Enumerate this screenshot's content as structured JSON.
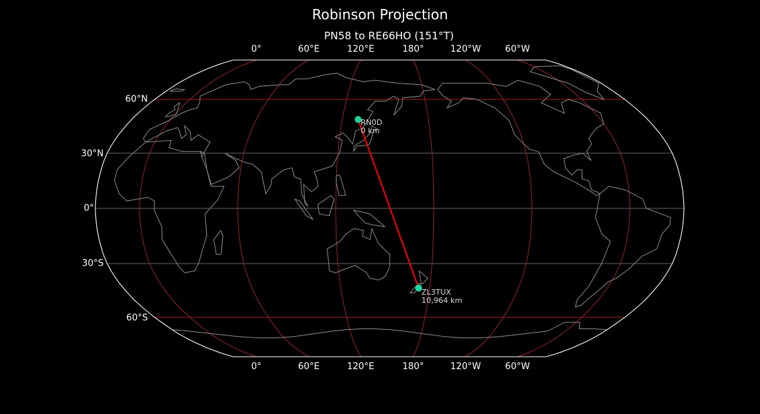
{
  "title": "Robinson Projection",
  "subtitle": "PN58 to RE66HO (151°T)",
  "lon_ticks_top": [
    "0°",
    "60°E",
    "120°E",
    "180°",
    "120°W",
    "60°W"
  ],
  "lon_ticks_bottom": [
    "0°",
    "60°E",
    "120°E",
    "180°",
    "120°W",
    "60°W"
  ],
  "lat_ticks": [
    "60°N",
    "30°N",
    "0°",
    "30°S",
    "60°S"
  ],
  "stations": [
    {
      "call": "RN0D",
      "distance": "0 km",
      "grid": "PN58",
      "lat": 48.5,
      "lon": 131.0
    },
    {
      "call": "ZL3TUX",
      "distance": "10,964 km",
      "grid": "RE66HO",
      "lat": -43.4,
      "lon": 172.6
    }
  ],
  "colors": {
    "background": "#000000",
    "coastline": "#8c8c8c",
    "graticule_meridian": "#a52a2a",
    "graticule_parallel_60": "#c02020",
    "graticule_parallel_minor": "#666666",
    "path": "#ff0000",
    "station_marker": "#1ed3a0",
    "outline": "#ffffff"
  }
}
